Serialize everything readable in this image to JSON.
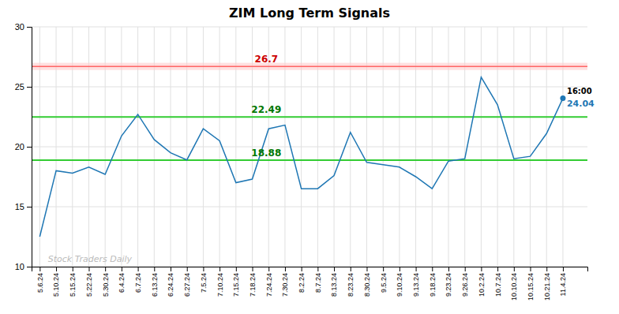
{
  "chart_data": {
    "type": "line",
    "title": "ZIM Long Term Signals",
    "categories": [
      "5.6.24",
      "5.10.24",
      "5.15.24",
      "5.22.24",
      "5.30.24",
      "6.4.24",
      "6.7.24",
      "6.13.24",
      "6.24.24",
      "6.27.24",
      "7.5.24",
      "7.10.24",
      "7.15.24",
      "7.18.24",
      "7.24.24",
      "7.30.24",
      "8.2.24",
      "8.7.24",
      "8.13.24",
      "8.23.24",
      "8.30.24",
      "9.5.24",
      "9.10.24",
      "9.13.24",
      "9.18.24",
      "9.23.24",
      "9.26.24",
      "10.2.24",
      "10.7.24",
      "10.10.24",
      "10.15.24",
      "10.21.24",
      "11.4.24"
    ],
    "values": [
      12.5,
      18.0,
      17.8,
      18.3,
      17.7,
      20.9,
      22.7,
      20.6,
      19.5,
      18.9,
      21.5,
      20.5,
      17.0,
      17.3,
      21.5,
      21.8,
      16.5,
      16.5,
      17.6,
      21.2,
      18.7,
      18.5,
      18.3,
      17.5,
      16.5,
      18.8,
      19.0,
      25.8,
      23.5,
      19.0,
      19.2,
      21.1,
      24.04
    ],
    "ylim": [
      10,
      30
    ],
    "yticks": [
      10,
      15,
      20,
      25,
      30
    ],
    "grid": true,
    "reference_lines": [
      {
        "value": 26.7,
        "label": "26.7",
        "color": "#ff6666",
        "label_color": "#cc0000",
        "band": [
          26.4,
          27.0
        ],
        "band_color": "#ffcccc"
      },
      {
        "value": 22.49,
        "label": "22.49",
        "color": "#33cc33",
        "label_color": "#007700"
      },
      {
        "value": 18.88,
        "label": "18.88",
        "color": "#33cc33",
        "label_color": "#007700"
      }
    ],
    "last_point": {
      "label": "16:00",
      "value_label": "24.04"
    },
    "watermark": "Stock Traders Daily"
  }
}
